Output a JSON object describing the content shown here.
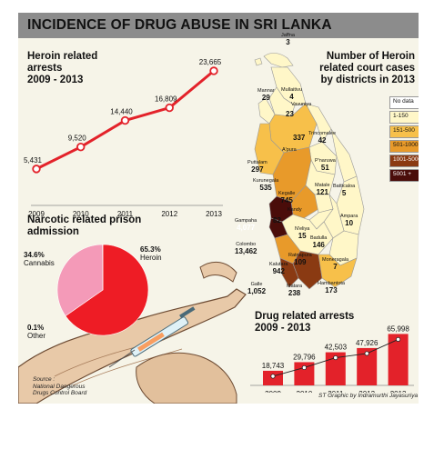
{
  "title": "INCIDENCE OF DRUG ABUSE IN SRI LANKA",
  "heroin_arrests": {
    "heading_line1": "Heroin related",
    "heading_line2": "arrests",
    "heading_line3": "2009 - 2013"
  },
  "prison": {
    "heading_line1": "Narcotic related prison",
    "heading_line2": "admission",
    "cannabis_pct": "34.6%",
    "cannabis_label": "Cannabis",
    "heroin_pct": "65.3%",
    "heroin_label": "Heroin",
    "other_pct": "0.1%",
    "other_label": "Other",
    "source_line1": "Source :",
    "source_line2": "National Dangerous",
    "source_line3": "Drugs Control Board"
  },
  "map": {
    "heading_line1": "Number of Heroin",
    "heading_line2": "related court cases",
    "heading_line3": "by districts in 2013",
    "legend": [
      {
        "label": "No data",
        "color": "#ffffff"
      },
      {
        "label": "1-150",
        "color": "#fff7c8"
      },
      {
        "label": "151-500",
        "color": "#f7c04a"
      },
      {
        "label": "501-1000",
        "color": "#e89a2a"
      },
      {
        "label": "1001-5000",
        "color": "#8a3a12"
      },
      {
        "label": "5001 +",
        "color": "#4a0d0a"
      }
    ],
    "districts": [
      {
        "name": "Jaffna",
        "value": "3"
      },
      {
        "name": "Mullaitivu",
        "value": "4"
      },
      {
        "name": "Vavuniya",
        "value": ""
      },
      {
        "name": "Mannar",
        "value": "29"
      },
      {
        "name": "",
        "value": "23"
      },
      {
        "name": "",
        "value": "337"
      },
      {
        "name": "A'pura",
        "value": ""
      },
      {
        "name": "Trincomalee",
        "value": "42"
      },
      {
        "name": "Puttalam",
        "value": "297"
      },
      {
        "name": "P'naruwa",
        "value": "51"
      },
      {
        "name": "Kurunegala",
        "value": "535"
      },
      {
        "name": "Matale",
        "value": "121"
      },
      {
        "name": "Batticaloa",
        "value": "5"
      },
      {
        "name": "Kegalle",
        "value": "745"
      },
      {
        "name": "Gampaha",
        "value": "4,077"
      },
      {
        "name": "",
        "value": "82"
      },
      {
        "name": "Kandy",
        "value": ""
      },
      {
        "name": "N'eliya",
        "value": "15"
      },
      {
        "name": "Badulla",
        "value": "146"
      },
      {
        "name": "Ampara",
        "value": "10"
      },
      {
        "name": "Colombo",
        "value": "13,462"
      },
      {
        "name": "Ratnapura",
        "value": "109"
      },
      {
        "name": "Moneragala",
        "value": "7"
      },
      {
        "name": "Kalutara",
        "value": "942"
      },
      {
        "name": "Galle",
        "value": "1,052"
      },
      {
        "name": "Matara",
        "value": "238"
      },
      {
        "name": "Hambantota",
        "value": "173"
      }
    ]
  },
  "drug_arrests": {
    "heading_line1": "Drug related arrests",
    "heading_line2": "2009 - 2013"
  },
  "credit": "ST Graphic by Indramurthi Jayasuriya",
  "chart_data": [
    {
      "type": "line",
      "title": "Heroin related arrests 2009 - 2013",
      "categories": [
        "2009",
        "2010",
        "2011",
        "2012",
        "2013"
      ],
      "value_labels": [
        "5,431",
        "9,520",
        "14,440",
        "16,809",
        "23,665"
      ],
      "values": [
        5431,
        9520,
        14440,
        16809,
        23665
      ],
      "ylim": [
        0,
        24000
      ],
      "grid": false,
      "color": "#e3222a"
    },
    {
      "type": "pie",
      "title": "Narcotic related prison admission",
      "labels": [
        "Heroin",
        "Cannabis",
        "Other"
      ],
      "values": [
        65.3,
        34.6,
        0.1
      ],
      "colors": [
        "#ee1c25",
        "#f49ab8",
        "#c0c0c0"
      ]
    },
    {
      "type": "bar",
      "title": "Drug related arrests 2009 - 2013",
      "categories": [
        "2009",
        "2010",
        "2011",
        "2012",
        "2013"
      ],
      "value_labels": [
        "18,743",
        "29,796",
        "42,503",
        "47,926",
        "65,998"
      ],
      "values": [
        18743,
        29796,
        42503,
        47926,
        65998
      ],
      "ylim": [
        0,
        70000
      ],
      "grid": false,
      "color": "#e3222a"
    }
  ]
}
